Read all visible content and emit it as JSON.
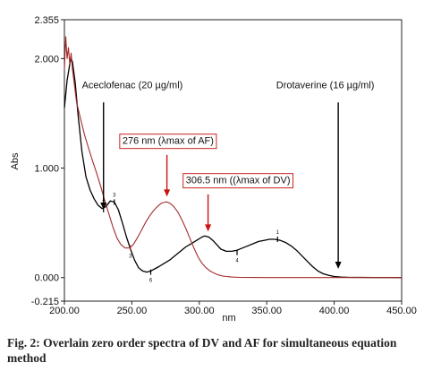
{
  "caption": "Fig. 2: Overlain zero order spectra of DV and AF for simultaneous equation method",
  "chart_data": {
    "type": "line",
    "title": "",
    "xlabel": "nm",
    "ylabel": "Abs",
    "xlim": [
      200,
      450
    ],
    "ylim": [
      -0.215,
      2.355
    ],
    "x_ticks": [
      200,
      250,
      300,
      350,
      400,
      450
    ],
    "x_tick_labels": [
      "200.00",
      "250.00",
      "300.00",
      "350.00",
      "400.00",
      "450.00"
    ],
    "y_ticks": [
      -0.215,
      0,
      1,
      2,
      2.355
    ],
    "y_tick_labels": [
      "-0.215",
      "0.000",
      "1.000",
      "2.000",
      "2.355"
    ],
    "grid": false,
    "colors": {
      "dv": "#000000",
      "af": "#a52a2a",
      "arrow": "#000000",
      "red_arrow": "#cc1111",
      "box_border": "#cc2222"
    },
    "series": [
      {
        "key": "dv",
        "x": [
          200,
          202,
          204,
          205,
          206,
          208,
          210,
          213,
          216,
          219,
          222,
          225,
          228,
          231,
          234,
          237,
          240,
          243,
          246,
          249,
          252,
          255,
          258,
          261,
          264,
          267,
          270,
          274,
          278,
          282,
          286,
          290,
          294,
          298,
          302,
          304,
          307,
          310,
          313,
          316,
          320,
          324,
          328,
          332,
          336,
          340,
          344,
          348,
          352,
          356,
          360,
          364,
          368,
          372,
          376,
          380,
          384,
          388,
          392,
          396,
          400,
          405,
          410,
          420,
          430,
          440,
          450
        ],
        "y": [
          1.55,
          1.8,
          1.95,
          2.0,
          1.97,
          1.78,
          1.5,
          1.15,
          0.92,
          0.8,
          0.72,
          0.66,
          0.63,
          0.65,
          0.7,
          0.69,
          0.62,
          0.5,
          0.37,
          0.26,
          0.16,
          0.09,
          0.06,
          0.05,
          0.06,
          0.08,
          0.1,
          0.13,
          0.16,
          0.2,
          0.24,
          0.28,
          0.31,
          0.34,
          0.37,
          0.38,
          0.37,
          0.34,
          0.3,
          0.26,
          0.24,
          0.24,
          0.25,
          0.27,
          0.29,
          0.31,
          0.33,
          0.34,
          0.35,
          0.35,
          0.34,
          0.32,
          0.29,
          0.25,
          0.2,
          0.15,
          0.1,
          0.06,
          0.035,
          0.02,
          0.01,
          0.005,
          0.003,
          0.002,
          0.001,
          0.001,
          0.0
        ]
      },
      {
        "key": "af",
        "x": [
          200,
          201,
          202,
          203,
          204,
          205,
          206,
          207,
          209,
          212,
          215,
          218,
          221,
          224,
          227,
          230,
          233,
          236,
          239,
          242,
          245,
          248,
          251,
          254,
          257,
          260,
          263,
          266,
          269,
          272,
          275,
          276,
          278,
          281,
          284,
          287,
          290,
          293,
          296,
          299,
          302,
          305,
          308,
          311,
          314,
          317,
          320,
          324,
          330,
          340,
          350,
          370,
          400,
          450
        ],
        "y": [
          1.9,
          2.2,
          2.0,
          2.1,
          1.95,
          2.05,
          1.9,
          1.8,
          1.6,
          1.45,
          1.3,
          1.18,
          1.06,
          0.95,
          0.83,
          0.7,
          0.58,
          0.46,
          0.36,
          0.3,
          0.27,
          0.27,
          0.3,
          0.36,
          0.43,
          0.5,
          0.56,
          0.61,
          0.65,
          0.68,
          0.69,
          0.69,
          0.68,
          0.65,
          0.6,
          0.53,
          0.45,
          0.36,
          0.27,
          0.19,
          0.13,
          0.09,
          0.06,
          0.04,
          0.025,
          0.015,
          0.01,
          0.005,
          0.002,
          0.001,
          0.0,
          0.0,
          0.0,
          0.0
        ]
      }
    ],
    "peak_markers": [
      {
        "label": "7",
        "x": 229,
        "y": 0.62,
        "series": "dv"
      },
      {
        "label": "3",
        "x": 237,
        "y": 0.69,
        "series": "dv"
      },
      {
        "label": "3",
        "x": 249,
        "y": 0.27,
        "series": "af"
      },
      {
        "label": "6",
        "x": 264,
        "y": 0.05,
        "series": "dv"
      },
      {
        "label": "4",
        "x": 328,
        "y": 0.23,
        "series": "dv"
      },
      {
        "label": "1",
        "x": 358,
        "y": 0.35,
        "series": "dv"
      }
    ],
    "annotations": [
      {
        "id": "aceclofenac",
        "text": "Aceclofenac (20 µg/ml)",
        "text_x": 213,
        "text_y": 1.73,
        "arrow_x": 229,
        "arrow_from_y": 1.6,
        "arrow_to_y": 0.62,
        "boxed": false
      },
      {
        "id": "drotaverine",
        "text": "Drotaverine (16 µg/ml)",
        "text_x": 357,
        "text_y": 1.73,
        "arrow_x": 403,
        "arrow_from_y": 1.6,
        "arrow_to_y": 0.08,
        "boxed": false
      },
      {
        "id": "af-max",
        "text": "276 nm (λmax of AF)",
        "text_x": 243,
        "text_y": 1.22,
        "arrow_x": 276,
        "arrow_from_y": 1.12,
        "arrow_to_y": 0.74,
        "boxed": true
      },
      {
        "id": "dv-max",
        "text": "306.5 nm ((λmax of DV)",
        "text_x": 290,
        "text_y": 0.86,
        "arrow_x": 306.5,
        "arrow_from_y": 0.76,
        "arrow_to_y": 0.42,
        "boxed": true
      }
    ]
  }
}
